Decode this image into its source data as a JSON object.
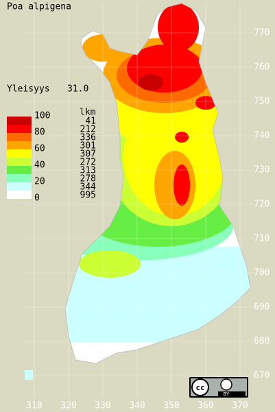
{
  "title": "Poa alpigena",
  "frequency": {
    "label": "Yleisyys",
    "value": "31.0"
  },
  "legend": {
    "scale_labels": [
      "100",
      "80",
      "60",
      "40",
      "20",
      "0"
    ],
    "count_header": "lkm",
    "counts": [
      "41",
      "212",
      "336",
      "301",
      "307",
      "272",
      "313",
      "278",
      "344",
      "995"
    ],
    "colors": [
      "#c80000",
      "#ff0000",
      "#ff6a00",
      "#ffa500",
      "#ffff00",
      "#ccff33",
      "#66ee44",
      "#88ffbb",
      "#ccffff",
      "#ffffff"
    ]
  },
  "grid": {
    "y_labels": [
      "770",
      "760",
      "750",
      "740",
      "730",
      "720",
      "710",
      "700",
      "690",
      "680",
      "670"
    ],
    "x_labels": [
      "310",
      "320",
      "330",
      "340",
      "350",
      "360",
      "370"
    ]
  },
  "license": {
    "badge": "cc",
    "tag": "BY"
  }
}
